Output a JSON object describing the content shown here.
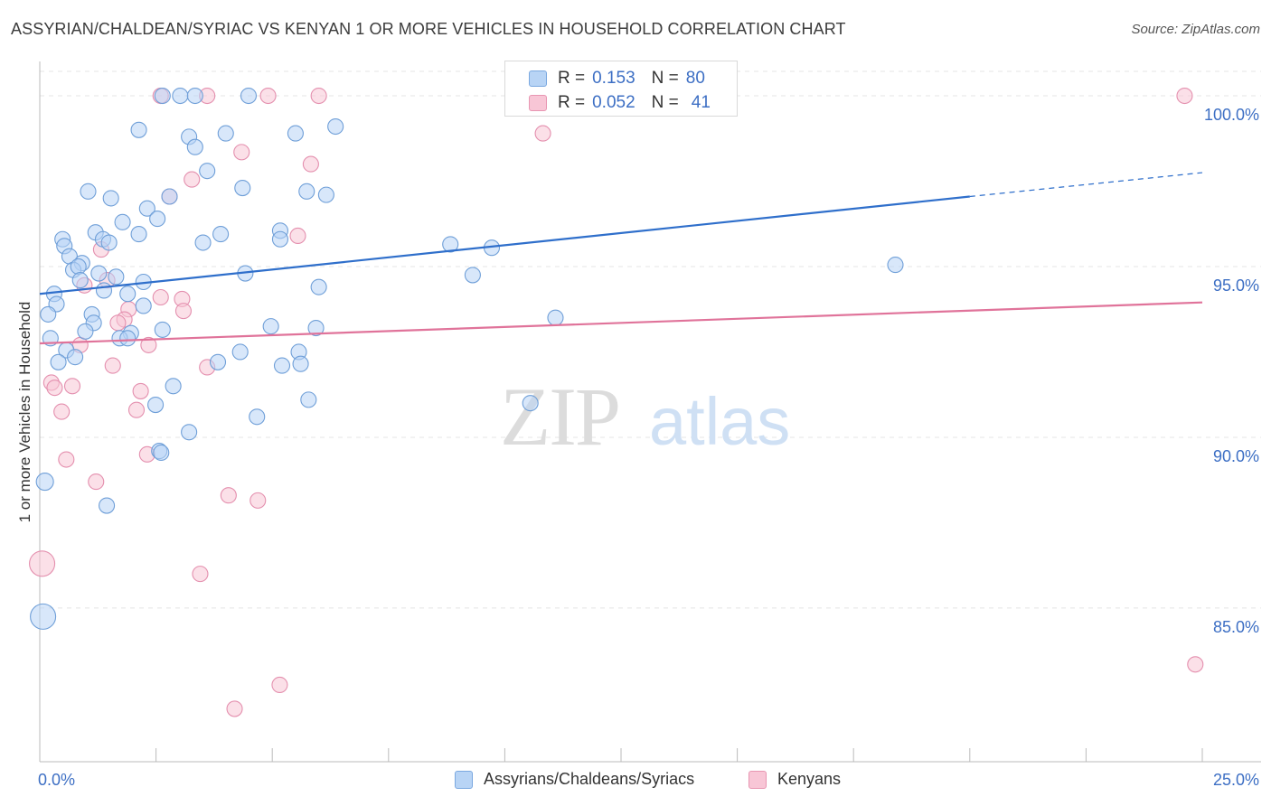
{
  "title": "ASSYRIAN/CHALDEAN/SYRIAC VS KENYAN 1 OR MORE VEHICLES IN HOUSEHOLD CORRELATION CHART",
  "source": "Source: ZipAtlas.com",
  "watermark": {
    "zip": "ZIP",
    "atlas": "atlas"
  },
  "legend": {
    "r_label": "R =",
    "n_label": "N =",
    "entries": [
      {
        "r": "0.153",
        "n": "80",
        "fill": "#b8d4f5",
        "stroke": "#7aa8e0"
      },
      {
        "r": "0.052",
        "n": "41",
        "fill": "#f8c6d6",
        "stroke": "#e896b2"
      }
    ]
  },
  "colors": {
    "blue_fill": "#b8d4f5",
    "blue_stroke": "#6f9fd8",
    "blue_line": "#2f6fcb",
    "pink_fill": "#f8c6d6",
    "pink_stroke": "#e48fae",
    "pink_line": "#e0739a",
    "grid": "#e4e4e4",
    "tick_text": "#3d6fc4"
  },
  "chart_data": {
    "type": "scatter",
    "title": "ASSYRIAN/CHALDEAN/SYRIAC VS KENYAN 1 OR MORE VEHICLES IN HOUSEHOLD CORRELATION CHART",
    "xlabel": "",
    "ylabel": "1 or more Vehicles in Household",
    "xlim": [
      0,
      25
    ],
    "ylim": [
      80.5,
      100.9
    ],
    "x_tick_labels": [
      {
        "value": 0,
        "label": "0.0%"
      },
      {
        "value": 25,
        "label": "25.0%"
      }
    ],
    "y_ticks": [
      {
        "value": 85,
        "label": "85.0%"
      },
      {
        "value": 90,
        "label": "90.0%"
      },
      {
        "value": 95,
        "label": "95.0%"
      },
      {
        "value": 100,
        "label": "100.0%"
      }
    ],
    "grid": true,
    "legend_position": "top-center",
    "series": [
      {
        "name": "Assyrians/Chaldeans/Syriacs",
        "color": "#b8d4f5",
        "trend": {
          "x": [
            0,
            20
          ],
          "y": [
            94.2,
            97.05
          ],
          "dashed_extension_to": [
            25,
            97.75
          ]
        },
        "points": [
          [
            2.64,
            100.0
          ],
          [
            3.02,
            100.0
          ],
          [
            3.34,
            100.0
          ],
          [
            4.49,
            100.0
          ],
          [
            2.13,
            99.0
          ],
          [
            3.21,
            98.8
          ],
          [
            4.0,
            98.9
          ],
          [
            5.5,
            98.9
          ],
          [
            6.36,
            99.1
          ],
          [
            3.34,
            98.5
          ],
          [
            3.6,
            97.8
          ],
          [
            4.36,
            97.3
          ],
          [
            5.74,
            97.2
          ],
          [
            6.16,
            97.1
          ],
          [
            1.04,
            97.2
          ],
          [
            1.53,
            97.0
          ],
          [
            2.79,
            97.05
          ],
          [
            2.31,
            96.7
          ],
          [
            2.53,
            96.4
          ],
          [
            1.78,
            96.3
          ],
          [
            2.13,
            95.95
          ],
          [
            3.89,
            95.95
          ],
          [
            5.17,
            96.05
          ],
          [
            5.17,
            95.8
          ],
          [
            1.2,
            96.0
          ],
          [
            1.36,
            95.8
          ],
          [
            1.49,
            95.7
          ],
          [
            3.51,
            95.7
          ],
          [
            8.83,
            95.65
          ],
          [
            9.72,
            95.55
          ],
          [
            0.49,
            95.8
          ],
          [
            0.53,
            95.6
          ],
          [
            0.64,
            95.3
          ],
          [
            0.91,
            95.1
          ],
          [
            0.72,
            94.9
          ],
          [
            0.83,
            95.0
          ],
          [
            1.27,
            94.8
          ],
          [
            1.64,
            94.7
          ],
          [
            2.23,
            94.55
          ],
          [
            4.42,
            94.8
          ],
          [
            9.31,
            94.75
          ],
          [
            0.87,
            94.6
          ],
          [
            1.38,
            94.3
          ],
          [
            1.89,
            94.2
          ],
          [
            2.23,
            93.85
          ],
          [
            6.0,
            94.4
          ],
          [
            18.4,
            95.05
          ],
          [
            0.31,
            94.2
          ],
          [
            0.36,
            93.9
          ],
          [
            0.18,
            93.6
          ],
          [
            1.12,
            93.6
          ],
          [
            1.16,
            93.35
          ],
          [
            0.98,
            93.1
          ],
          [
            1.96,
            93.05
          ],
          [
            1.72,
            92.9
          ],
          [
            1.89,
            92.9
          ],
          [
            2.64,
            93.15
          ],
          [
            4.97,
            93.25
          ],
          [
            5.94,
            93.2
          ],
          [
            11.09,
            93.5
          ],
          [
            0.23,
            92.9
          ],
          [
            0.57,
            92.55
          ],
          [
            0.76,
            92.35
          ],
          [
            0.4,
            92.2
          ],
          [
            3.83,
            92.2
          ],
          [
            4.31,
            92.5
          ],
          [
            5.21,
            92.1
          ],
          [
            5.57,
            92.5
          ],
          [
            5.61,
            92.15
          ],
          [
            2.87,
            91.5
          ],
          [
            2.49,
            90.95
          ],
          [
            5.78,
            91.1
          ],
          [
            10.55,
            91.0
          ],
          [
            4.67,
            90.6
          ],
          [
            3.21,
            90.15
          ],
          [
            2.57,
            89.6
          ],
          [
            0.11,
            88.7
          ],
          [
            1.44,
            88.0
          ],
          [
            0.07,
            84.75
          ],
          [
            2.61,
            89.55
          ]
        ]
      },
      {
        "name": "Kenyans",
        "color": "#f8c6d6",
        "trend": {
          "x": [
            0,
            25
          ],
          "y": [
            92.75,
            93.95
          ]
        },
        "points": [
          [
            2.6,
            100.0
          ],
          [
            3.6,
            100.0
          ],
          [
            4.91,
            100.0
          ],
          [
            6.0,
            100.0
          ],
          [
            10.27,
            100.0
          ],
          [
            24.62,
            100.0
          ],
          [
            10.82,
            98.9
          ],
          [
            4.34,
            98.35
          ],
          [
            5.83,
            98.0
          ],
          [
            3.27,
            97.55
          ],
          [
            2.79,
            97.05
          ],
          [
            5.55,
            95.9
          ],
          [
            1.32,
            95.5
          ],
          [
            0.96,
            94.45
          ],
          [
            1.45,
            94.6
          ],
          [
            2.6,
            94.1
          ],
          [
            3.06,
            94.05
          ],
          [
            3.09,
            93.7
          ],
          [
            1.91,
            93.75
          ],
          [
            1.82,
            93.45
          ],
          [
            1.68,
            93.35
          ],
          [
            0.87,
            92.7
          ],
          [
            2.34,
            92.7
          ],
          [
            1.57,
            92.1
          ],
          [
            3.6,
            92.05
          ],
          [
            0.25,
            91.6
          ],
          [
            0.32,
            91.45
          ],
          [
            0.7,
            91.5
          ],
          [
            2.17,
            91.35
          ],
          [
            0.47,
            90.75
          ],
          [
            2.08,
            90.8
          ],
          [
            0.57,
            89.35
          ],
          [
            2.31,
            89.5
          ],
          [
            1.21,
            88.7
          ],
          [
            4.06,
            88.3
          ],
          [
            4.69,
            88.15
          ],
          [
            0.05,
            86.3
          ],
          [
            3.45,
            86.0
          ],
          [
            24.85,
            83.35
          ],
          [
            5.16,
            82.75
          ],
          [
            4.19,
            82.05
          ]
        ]
      }
    ]
  },
  "bottom_legend": [
    {
      "label": "Assyrians/Chaldeans/Syriacs",
      "fill": "#b8d4f5",
      "stroke": "#7aa8e0"
    },
    {
      "label": "Kenyans",
      "fill": "#f8c6d6",
      "stroke": "#e896b2"
    }
  ]
}
